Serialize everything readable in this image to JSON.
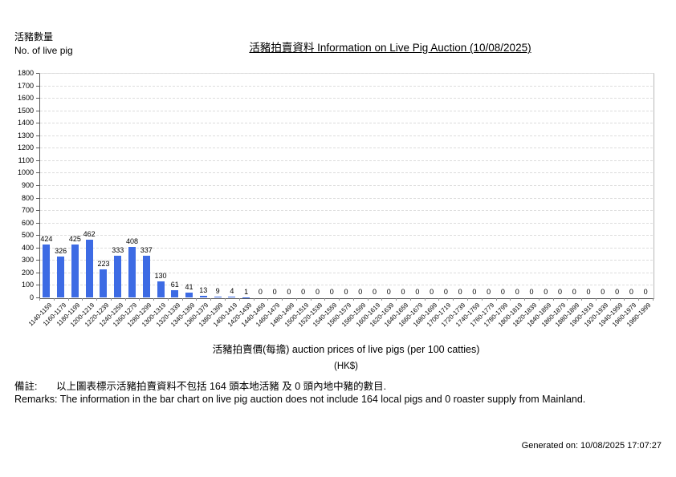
{
  "page": {
    "y_axis_header_zh": "活豬數量",
    "y_axis_header_en": "No. of live pig",
    "title": "活豬拍賣資料 Information on Live Pig Auction (10/08/2025)",
    "xaxis_title": "活豬拍賣價(每擔) auction prices of live pigs (per 100 catties)",
    "xaxis_unit": "(HK$)",
    "remark_zh_label": "備註:",
    "remark_zh_text": "以上圖表標示活豬拍賣資料不包括 164 頭本地活豬 及 0 頭內地中豬的數目.",
    "remark_en": "Remarks: The information in the bar chart on live pig auction does not include 164 local pigs and 0 roaster supply from Mainland.",
    "generated_on": "Generated on: 10/08/2025 17:07:27"
  },
  "chart_data": {
    "type": "bar",
    "title": "活豬拍賣資料 Information on Live Pig Auction (10/08/2025)",
    "xlabel": "活豬拍賣價(每擔) auction prices of live pigs (per 100 catties) (HK$)",
    "ylabel": "活豬數量 No. of live pig",
    "ylim": [
      0,
      1800
    ],
    "ytick_step": 100,
    "grid": true,
    "legend_position": "none",
    "bar_color": "#3D6BE4",
    "categories": [
      "1140-1159",
      "1160-1179",
      "1180-1199",
      "1200-1219",
      "1220-1239",
      "1240-1259",
      "1260-1279",
      "1280-1299",
      "1300-1319",
      "1320-1339",
      "1340-1359",
      "1360-1379",
      "1380-1399",
      "1400-1419",
      "1420-1439",
      "1440-1459",
      "1460-1479",
      "1480-1499",
      "1500-1519",
      "1520-1539",
      "1540-1559",
      "1560-1579",
      "1580-1599",
      "1600-1619",
      "1620-1639",
      "1640-1659",
      "1660-1679",
      "1680-1699",
      "1700-1719",
      "1720-1739",
      "1740-1759",
      "1760-1779",
      "1780-1799",
      "1800-1819",
      "1820-1839",
      "1840-1859",
      "1860-1879",
      "1880-1899",
      "1900-1919",
      "1920-1939",
      "1940-1959",
      "1960-1979",
      "1980-1999"
    ],
    "values": [
      424,
      326,
      425,
      462,
      223,
      333,
      408,
      337,
      130,
      61,
      41,
      13,
      9,
      4,
      1,
      0,
      0,
      0,
      0,
      0,
      0,
      0,
      0,
      0,
      0,
      0,
      0,
      0,
      0,
      0,
      0,
      0,
      0,
      0,
      0,
      0,
      0,
      0,
      0,
      0,
      0,
      0,
      0
    ]
  }
}
